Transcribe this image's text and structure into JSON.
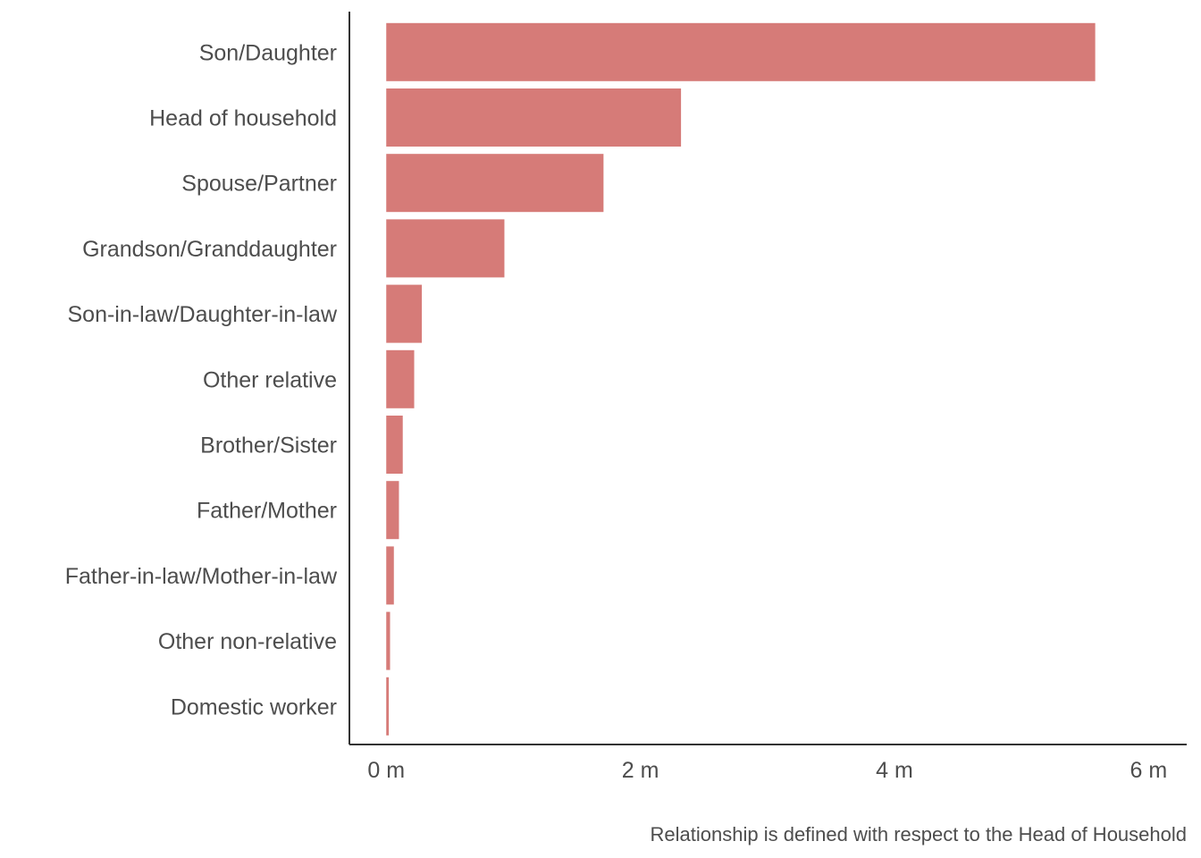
{
  "chart_data": {
    "type": "bar",
    "orientation": "horizontal",
    "categories": [
      "Son/Daughter",
      "Head of household",
      "Spouse/Partner",
      "Grandson/Granddaughter",
      "Son-in-law/Daughter-in-law",
      "Other relative",
      "Brother/Sister",
      "Father/Mother",
      "Father-in-law/Mother-in-law",
      "Other non-relative",
      "Domestic worker"
    ],
    "values": [
      5.58,
      2.32,
      1.71,
      0.93,
      0.28,
      0.22,
      0.13,
      0.1,
      0.06,
      0.03,
      0.02
    ],
    "value_unit": "millions",
    "xlim": [
      -0.29,
      6.3
    ],
    "x_ticks": [
      0,
      2,
      4,
      6
    ],
    "x_tick_labels": [
      "0 m",
      "2 m",
      "4 m",
      "6 m"
    ],
    "bar_color": "#d67b78",
    "axis_color": "#333333",
    "text_color": "#4d4d4d",
    "grid": false,
    "legend": "none",
    "caption": "Relationship is defined with respect to the Head of Household"
  }
}
